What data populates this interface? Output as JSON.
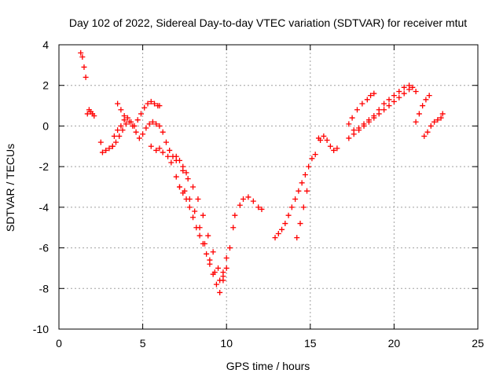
{
  "chart_data": {
    "type": "scatter",
    "title": "Day 102 of 2022, Sidereal Day-to-day VTEC variation (SDTVAR) for receiver mtut",
    "xlabel": "GPS time / hours",
    "ylabel": "SDTVAR / TECUs",
    "xlim": [
      0,
      25
    ],
    "ylim": [
      -10,
      4
    ],
    "xticks": [
      "0",
      "5",
      "10",
      "15",
      "20",
      "25"
    ],
    "yticks": [
      "-10",
      "-8",
      "-6",
      "-4",
      "-2",
      "0",
      "2",
      "4"
    ],
    "grid": true,
    "marker": "+",
    "color": "#ff0000",
    "series": [
      {
        "name": "SDTVAR",
        "x": [
          1.3,
          1.4,
          1.5,
          1.6,
          1.7,
          1.8,
          1.9,
          2.0,
          2.1,
          2.5,
          2.6,
          2.8,
          3.0,
          3.2,
          3.3,
          3.5,
          3.7,
          3.9,
          3.5,
          3.7,
          3.9,
          4.1,
          4.3,
          4.5,
          4.7,
          4.9,
          5.1,
          5.3,
          5.5,
          5.7,
          5.9,
          6.0,
          3.2,
          3.4,
          3.6,
          3.8,
          4.0,
          4.2,
          4.4,
          4.6,
          4.8,
          5.0,
          5.2,
          5.4,
          5.6,
          5.8,
          6.0,
          6.2,
          6.4,
          6.6,
          6.8,
          7.0,
          5.5,
          5.8,
          6.0,
          6.2,
          6.5,
          6.7,
          7.0,
          7.2,
          7.4,
          7.6,
          7.0,
          7.2,
          7.4,
          7.6,
          7.8,
          8.0,
          8.2,
          8.4,
          8.6,
          8.8,
          9.0,
          9.2,
          9.4,
          9.6,
          9.8,
          10.0,
          10.2,
          10.4,
          7.2,
          7.5,
          7.8,
          8.1,
          8.4,
          8.7,
          9.0,
          9.3,
          9.6,
          9.8,
          10.0,
          7.4,
          7.7,
          8.0,
          8.3,
          8.6,
          8.9,
          9.2,
          9.5,
          9.8,
          10.5,
          10.8,
          11.0,
          11.3,
          11.6,
          11.9,
          12.1,
          12.9,
          13.1,
          13.3,
          13.5,
          13.7,
          13.9,
          14.1,
          14.3,
          14.5,
          14.7,
          14.9,
          15.1,
          15.3,
          14.2,
          14.4,
          14.6,
          14.8,
          15.5,
          15.6,
          15.8,
          16.0,
          16.2,
          16.4,
          16.6,
          17.3,
          17.5,
          17.8,
          18.1,
          18.4,
          18.6,
          18.8,
          17.3,
          17.6,
          17.9,
          18.2,
          18.5,
          18.8,
          19.1,
          19.4,
          19.7,
          20.0,
          20.3,
          20.6,
          20.9,
          21.1,
          21.3,
          17.6,
          17.9,
          18.2,
          18.5,
          18.8,
          19.1,
          19.4,
          19.7,
          20.0,
          20.3,
          20.6,
          20.9,
          21.3,
          21.5,
          21.7,
          21.9,
          22.1,
          21.8,
          22.0,
          22.2,
          22.4,
          22.6,
          22.8,
          22.9
        ],
        "y": [
          3.6,
          3.4,
          2.9,
          2.4,
          0.6,
          0.8,
          0.7,
          0.6,
          0.5,
          -0.8,
          -1.3,
          -1.2,
          -1.1,
          -1.0,
          -0.5,
          -0.2,
          0.0,
          0.3,
          1.1,
          0.8,
          0.5,
          0.4,
          0.2,
          0.0,
          0.3,
          0.6,
          0.9,
          1.1,
          1.2,
          1.1,
          1.0,
          1.0,
          -1.0,
          -0.8,
          -0.5,
          -0.2,
          0.1,
          0.2,
          0.0,
          -0.3,
          -0.6,
          -0.4,
          -0.1,
          0.1,
          0.2,
          0.1,
          0.0,
          -0.3,
          -0.8,
          -1.2,
          -1.5,
          -1.7,
          -1.0,
          -1.2,
          -1.1,
          -1.3,
          -1.5,
          -1.8,
          -1.5,
          -1.7,
          -2.0,
          -2.3,
          -2.5,
          -3.0,
          -3.3,
          -3.6,
          -4.0,
          -4.5,
          -5.0,
          -5.4,
          -5.8,
          -6.3,
          -6.8,
          -7.3,
          -7.8,
          -8.2,
          -7.6,
          -7.0,
          -6.0,
          -5.0,
          -3.0,
          -3.2,
          -3.6,
          -4.2,
          -5.0,
          -5.8,
          -6.6,
          -7.2,
          -7.6,
          -7.2,
          -6.5,
          -2.2,
          -2.6,
          -3.0,
          -3.6,
          -4.4,
          -5.4,
          -6.2,
          -7.0,
          -7.4,
          -4.4,
          -3.9,
          -3.6,
          -3.5,
          -3.7,
          -4.0,
          -4.1,
          -5.5,
          -5.3,
          -5.1,
          -4.8,
          -4.4,
          -4.0,
          -3.6,
          -3.2,
          -2.8,
          -2.4,
          -2.0,
          -1.6,
          -1.4,
          -5.5,
          -4.8,
          -4.0,
          -3.2,
          -0.6,
          -0.7,
          -0.5,
          -0.7,
          -1.0,
          -1.2,
          -1.1,
          0.1,
          0.4,
          0.8,
          1.1,
          1.3,
          1.5,
          1.6,
          -0.6,
          -0.4,
          -0.2,
          0.0,
          0.2,
          0.4,
          0.6,
          0.8,
          1.0,
          1.2,
          1.4,
          1.6,
          1.8,
          1.9,
          1.7,
          -0.2,
          -0.1,
          0.1,
          0.3,
          0.5,
          0.8,
          1.1,
          1.3,
          1.5,
          1.7,
          1.9,
          2.0,
          0.2,
          0.6,
          1.0,
          1.3,
          1.5,
          -0.5,
          -0.3,
          0.0,
          0.2,
          0.3,
          0.4,
          0.6
        ]
      }
    ]
  }
}
